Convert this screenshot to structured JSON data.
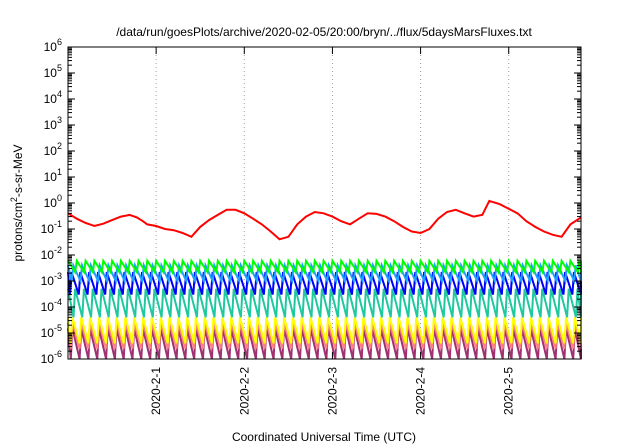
{
  "chart_data": {
    "type": "line",
    "title": "/data/run/goesPlots/archive/2020-02-05/20:00/bryn/../flux/5daysMarsFluxes.txt",
    "xlabel": "Coordinated Universal Time (UTC)",
    "ylabel": {
      "prefix": "protons/cm",
      "exponent": "2",
      "suffix": "-s-sr-MeV"
    },
    "yscale": "log",
    "ylim_exp": [
      -6,
      6
    ],
    "y_tick_base": "10",
    "y_ticks_exp": [
      "-6",
      "-5",
      "-4",
      "-3",
      "-2",
      "-1",
      "0",
      "1",
      "2",
      "3",
      "4",
      "5",
      "6"
    ],
    "xlim_days": [
      30.0,
      35.82
    ],
    "x_ticks": [
      {
        "day": 31,
        "label": "2020-2-1"
      },
      {
        "day": 32,
        "label": "2020-2-2"
      },
      {
        "day": 33,
        "label": "2020-2-3"
      },
      {
        "day": 34,
        "label": "2020-2-4"
      },
      {
        "day": 35,
        "label": "2020-2-5"
      }
    ],
    "grid": true,
    "legend": "none",
    "series": [
      {
        "color": "#ff0000",
        "style": "smooth",
        "points": [
          [
            30.0,
            0.4
          ],
          [
            30.1,
            0.25
          ],
          [
            30.2,
            0.17
          ],
          [
            30.3,
            0.13
          ],
          [
            30.4,
            0.16
          ],
          [
            30.5,
            0.22
          ],
          [
            30.6,
            0.3
          ],
          [
            30.7,
            0.35
          ],
          [
            30.78,
            0.28
          ],
          [
            30.85,
            0.2
          ],
          [
            30.9,
            0.15
          ],
          [
            31.0,
            0.13
          ],
          [
            31.1,
            0.1
          ],
          [
            31.2,
            0.09
          ],
          [
            31.3,
            0.07
          ],
          [
            31.4,
            0.05
          ],
          [
            31.5,
            0.12
          ],
          [
            31.6,
            0.22
          ],
          [
            31.7,
            0.35
          ],
          [
            31.8,
            0.55
          ],
          [
            31.9,
            0.55
          ],
          [
            32.0,
            0.4
          ],
          [
            32.1,
            0.25
          ],
          [
            32.2,
            0.15
          ],
          [
            32.3,
            0.08
          ],
          [
            32.4,
            0.04
          ],
          [
            32.5,
            0.05
          ],
          [
            32.6,
            0.15
          ],
          [
            32.7,
            0.3
          ],
          [
            32.8,
            0.45
          ],
          [
            32.9,
            0.4
          ],
          [
            33.0,
            0.3
          ],
          [
            33.1,
            0.2
          ],
          [
            33.2,
            0.15
          ],
          [
            33.3,
            0.25
          ],
          [
            33.4,
            0.4
          ],
          [
            33.5,
            0.38
          ],
          [
            33.6,
            0.3
          ],
          [
            33.7,
            0.2
          ],
          [
            33.8,
            0.12
          ],
          [
            33.9,
            0.08
          ],
          [
            34.0,
            0.07
          ],
          [
            34.1,
            0.1
          ],
          [
            34.2,
            0.25
          ],
          [
            34.3,
            0.45
          ],
          [
            34.4,
            0.55
          ],
          [
            34.5,
            0.4
          ],
          [
            34.6,
            0.3
          ],
          [
            34.7,
            0.35
          ],
          [
            34.78,
            1.2
          ],
          [
            34.9,
            0.9
          ],
          [
            35.0,
            0.6
          ],
          [
            35.1,
            0.4
          ],
          [
            35.2,
            0.2
          ],
          [
            35.3,
            0.12
          ],
          [
            35.4,
            0.08
          ],
          [
            35.5,
            0.06
          ],
          [
            35.6,
            0.05
          ],
          [
            35.7,
            0.15
          ],
          [
            35.82,
            0.28
          ]
        ]
      },
      {
        "color": "#00ff00",
        "style": "sawtooth",
        "high": 0.006,
        "low": 0.0022,
        "period": 0.1,
        "phase": 0.0
      },
      {
        "color": "#1fa2ff",
        "style": "sawtooth",
        "high": 0.004,
        "low": 0.001,
        "period": 0.1,
        "phase": 0.04
      },
      {
        "color": "#0000ff",
        "style": "sawtooth",
        "high": 0.0022,
        "low": 0.0003,
        "period": 0.1,
        "phase": 0.06
      },
      {
        "color": "#20c8a0",
        "style": "sawtooth",
        "high": 0.0005,
        "low": 4e-05,
        "period": 0.1,
        "phase": 0.02
      },
      {
        "color": "#ffff00",
        "style": "sawtooth",
        "high": 4e-05,
        "low": 4e-06,
        "period": 0.1,
        "phase": 0.05
      },
      {
        "color": "#ff8080",
        "style": "sawtooth",
        "high": 2.5e-05,
        "low": 2.5e-06,
        "period": 0.1,
        "phase": 0.05
      },
      {
        "color": "#a03070",
        "style": "sawtooth",
        "high": 1.5e-05,
        "low": 1e-06,
        "period": 0.1,
        "phase": 0.05
      }
    ]
  }
}
